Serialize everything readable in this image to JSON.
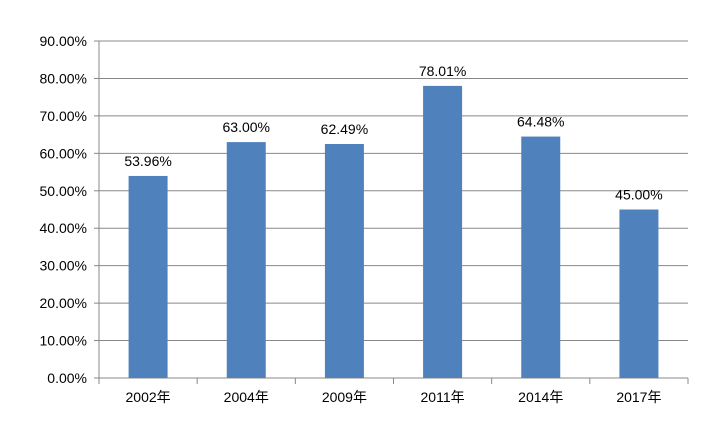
{
  "chart_data": {
    "type": "bar",
    "categories": [
      "2002年",
      "2004年",
      "2009年",
      "2011年",
      "2014年",
      "2017年"
    ],
    "values": [
      53.96,
      63.0,
      62.49,
      78.01,
      64.48,
      45.0
    ],
    "data_labels": [
      "53.96%",
      "63.00%",
      "62.49%",
      "78.01%",
      "64.48%",
      "45.00%"
    ],
    "ylim": [
      0,
      90
    ],
    "ytick_values": [
      0,
      10,
      20,
      30,
      40,
      50,
      60,
      70,
      80,
      90
    ],
    "ytick_labels": [
      "0.00%",
      "10.00%",
      "20.00%",
      "30.00%",
      "40.00%",
      "50.00%",
      "60.00%",
      "70.00%",
      "80.00%",
      "90.00%"
    ],
    "grid": true,
    "legend": "none",
    "title": "",
    "xlabel": "",
    "ylabel": "",
    "colors": {
      "bar": "#4f81bd",
      "grid": "#888888",
      "axis": "#888888"
    }
  }
}
